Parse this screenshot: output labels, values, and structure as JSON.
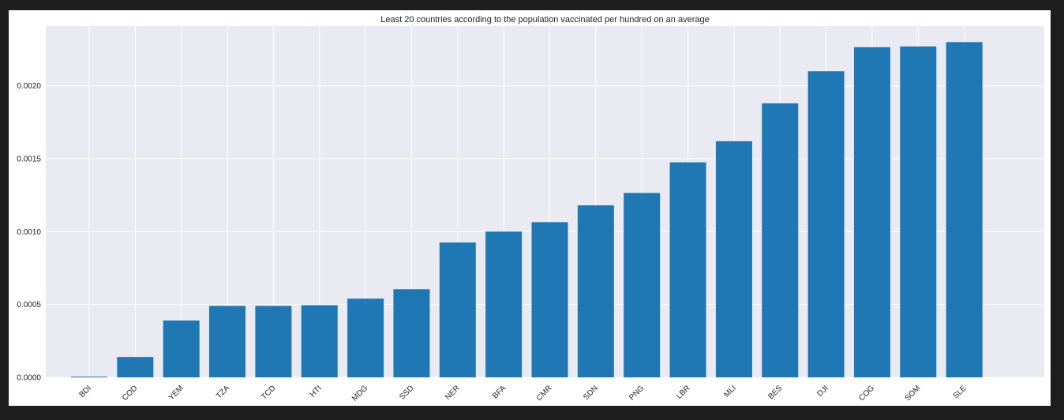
{
  "chart_data": {
    "type": "bar",
    "title": "Least 20 countries according to the population vaccinated per hundred on an average",
    "xlabel": "",
    "ylabel": "",
    "categories": [
      "BDI",
      "COD",
      "YEM",
      "TZA",
      "TCD",
      "HTI",
      "MDG",
      "SSD",
      "NER",
      "BFA",
      "CMR",
      "SDN",
      "PNG",
      "LBR",
      "MLI",
      "BES",
      "DJI",
      "COG",
      "SOM",
      "SLE"
    ],
    "values": [
      5e-06,
      0.00014,
      0.00039,
      0.00049,
      0.00049,
      0.000495,
      0.00054,
      0.000605,
      0.000925,
      0.001,
      0.001065,
      0.00118,
      0.001265,
      0.001475,
      0.00162,
      0.00188,
      0.0021,
      0.002265,
      0.00227,
      0.0023
    ],
    "ylim": [
      0,
      0.00241
    ],
    "yticks": [
      "0.0000",
      "0.0005",
      "0.0010",
      "0.0015",
      "0.0020"
    ],
    "ytick_values": [
      0,
      0.0005,
      0.001,
      0.0015,
      0.002
    ],
    "grid": true,
    "legend": "none",
    "colors": {
      "bar": "#1f77b4",
      "plot_bg": "#eaeaf2",
      "grid": "#ffffff",
      "figure_bg": "#ffffff",
      "outer_bg": "#1e1e1e"
    }
  }
}
